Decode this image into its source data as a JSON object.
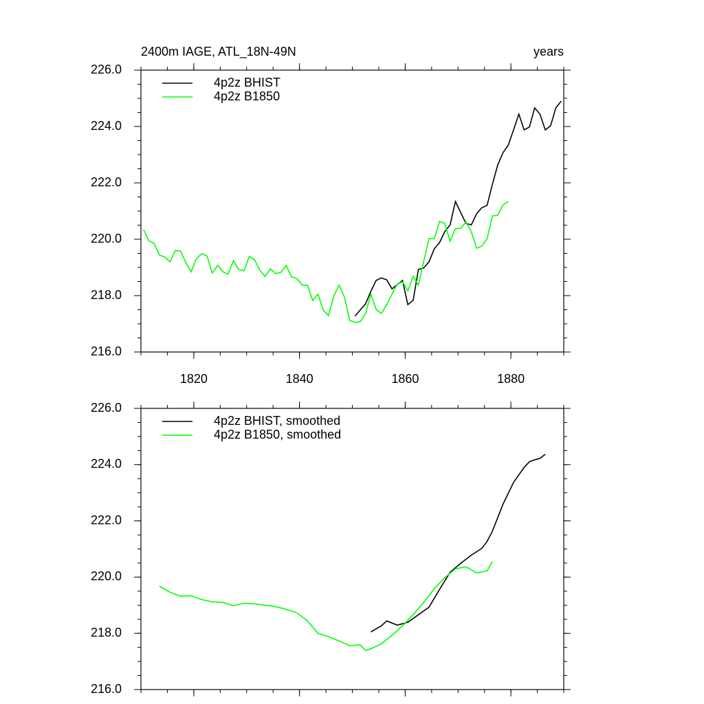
{
  "chart_data": [
    {
      "type": "line",
      "title": "2400m IAGE, ATL_18N-49N",
      "right_title": "years",
      "xlim": [
        1810,
        1890
      ],
      "xticks": [
        1820,
        1840,
        1860,
        1880
      ],
      "x_tick_labels_shown": true,
      "ylim": [
        216,
        226
      ],
      "yticks": [
        {
          "value": 216,
          "label": "216.0"
        },
        {
          "value": 218,
          "label": "218.0"
        },
        {
          "value": 220,
          "label": "220.0"
        },
        {
          "value": 222,
          "label": "222.0"
        },
        {
          "value": 224,
          "label": "224.0"
        },
        {
          "value": 226,
          "label": "226.0"
        }
      ],
      "series": [
        {
          "name": "4p2z BHIST",
          "color": "#000000",
          "x": [
            1850.5,
            1851.5,
            1852.5,
            1853.5,
            1854.5,
            1855.5,
            1856.5,
            1857.5,
            1858.5,
            1859.5,
            1860.5,
            1861.5,
            1862.5,
            1863.5,
            1864.5,
            1865.5,
            1866.5,
            1867.5,
            1868.5,
            1869.5,
            1870.5,
            1871.5,
            1872.5,
            1873.5,
            1874.5,
            1875.5,
            1876.5,
            1877.5,
            1878.5,
            1879.5,
            1880.5,
            1881.5,
            1882.5,
            1883.5,
            1884.5,
            1885.5,
            1886.5,
            1887.5,
            1888.5,
            1889.5
          ],
          "values": [
            217.27,
            217.49,
            217.71,
            218.15,
            218.54,
            218.63,
            218.56,
            218.24,
            218.39,
            218.54,
            217.68,
            217.83,
            218.93,
            218.98,
            219.2,
            219.66,
            219.88,
            220.27,
            220.51,
            221.34,
            220.95,
            220.56,
            220.51,
            220.9,
            221.12,
            221.2,
            221.95,
            222.63,
            223.07,
            223.34,
            223.88,
            224.44,
            223.88,
            223.98,
            224.66,
            224.44,
            223.88,
            224.02,
            224.66,
            224.9
          ]
        },
        {
          "name": "4p2z B1850",
          "color": "#00ff00",
          "x": [
            1810.5,
            1811.5,
            1812.5,
            1813.5,
            1814.5,
            1815.5,
            1816.5,
            1817.5,
            1818.5,
            1819.5,
            1820.5,
            1821.5,
            1822.5,
            1823.5,
            1824.5,
            1825.5,
            1826.5,
            1827.5,
            1828.5,
            1829.5,
            1830.5,
            1831.5,
            1832.5,
            1833.5,
            1834.5,
            1835.5,
            1836.5,
            1837.5,
            1838.5,
            1839.5,
            1840.5,
            1841.5,
            1842.5,
            1843.5,
            1844.5,
            1845.5,
            1846.5,
            1847.5,
            1848.5,
            1849.5,
            1850.5,
            1851.5,
            1852.5,
            1853.5,
            1854.5,
            1855.5,
            1856.5,
            1857.5,
            1858.5,
            1859.5,
            1860.5,
            1861.5,
            1862.5,
            1863.5,
            1864.5,
            1865.5,
            1866.5,
            1867.5,
            1868.5,
            1869.5,
            1870.5,
            1871.5,
            1872.5,
            1873.5,
            1874.5,
            1875.5,
            1876.5,
            1877.5,
            1878.5,
            1879.5
          ],
          "values": [
            220.34,
            219.95,
            219.85,
            219.44,
            219.37,
            219.2,
            219.6,
            219.58,
            219.17,
            218.85,
            219.3,
            219.49,
            219.41,
            218.8,
            219.07,
            218.85,
            218.76,
            219.24,
            218.93,
            218.88,
            219.39,
            219.27,
            218.9,
            218.68,
            218.95,
            218.78,
            218.83,
            219.07,
            218.66,
            218.61,
            218.37,
            218.37,
            217.83,
            218.05,
            217.49,
            217.29,
            218.0,
            218.37,
            217.95,
            217.12,
            217.05,
            217.07,
            217.37,
            218.05,
            217.51,
            217.37,
            217.68,
            218.05,
            218.41,
            218.49,
            218.17,
            218.68,
            218.37,
            219.22,
            220.02,
            220.02,
            220.63,
            220.56,
            219.93,
            220.37,
            220.39,
            220.61,
            220.27,
            219.68,
            219.76,
            220.02,
            220.83,
            220.85,
            221.22,
            221.34
          ]
        }
      ]
    },
    {
      "type": "line",
      "xlim": [
        1810,
        1890
      ],
      "xticks": [
        1820,
        1840,
        1860,
        1880
      ],
      "x_tick_labels_shown": false,
      "ylim": [
        216,
        226
      ],
      "yticks": [
        {
          "value": 216,
          "label": "216.0"
        },
        {
          "value": 218,
          "label": "218.0"
        },
        {
          "value": 220,
          "label": "220.0"
        },
        {
          "value": 222,
          "label": "222.0"
        },
        {
          "value": 224,
          "label": "224.0"
        },
        {
          "value": 226,
          "label": "226.0"
        }
      ],
      "series": [
        {
          "name": "4p2z BHIST, smoothed",
          "color": "#000000",
          "x": [
            1853.5,
            1855.5,
            1856.5,
            1858.5,
            1860.5,
            1862.5,
            1864.5,
            1866.5,
            1868.5,
            1870.5,
            1872.5,
            1874.5,
            1875.5,
            1876.5,
            1878.5,
            1880.5,
            1882.5,
            1883.5,
            1884.5,
            1885.5,
            1886.5
          ],
          "values": [
            218.05,
            218.27,
            218.44,
            218.29,
            218.39,
            218.66,
            218.93,
            219.56,
            220.17,
            220.49,
            220.78,
            221.02,
            221.27,
            221.63,
            222.59,
            223.37,
            223.9,
            224.1,
            224.17,
            224.22,
            224.37
          ]
        },
        {
          "name": "4p2z B1850, smoothed",
          "color": "#00ff00",
          "x": [
            1813.5,
            1815.5,
            1817.5,
            1819.5,
            1821.5,
            1823.5,
            1825.5,
            1827.5,
            1829.5,
            1831.5,
            1833.5,
            1835.5,
            1837.5,
            1839.5,
            1841.5,
            1843.5,
            1845.5,
            1847.5,
            1849.5,
            1851.5,
            1852.5,
            1853.5,
            1855.5,
            1857.5,
            1859.5,
            1861.5,
            1863.5,
            1865.5,
            1867.5,
            1869.5,
            1871.5,
            1873.5,
            1875.5,
            1876.5
          ],
          "values": [
            219.68,
            219.46,
            219.32,
            219.34,
            219.2,
            219.12,
            219.1,
            218.98,
            219.07,
            219.05,
            219.0,
            218.95,
            218.85,
            218.73,
            218.44,
            218.0,
            217.88,
            217.73,
            217.56,
            217.59,
            217.39,
            217.45,
            217.63,
            217.93,
            218.27,
            218.66,
            219.1,
            219.59,
            219.98,
            220.29,
            220.37,
            220.15,
            220.22,
            220.56
          ]
        }
      ]
    }
  ]
}
